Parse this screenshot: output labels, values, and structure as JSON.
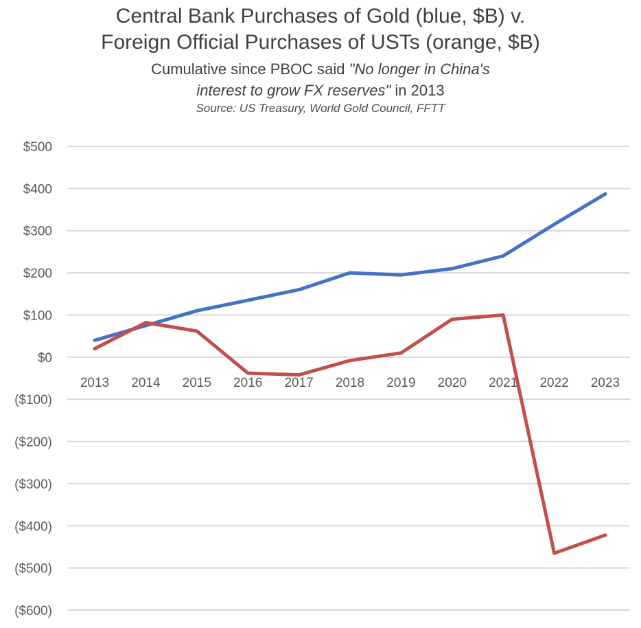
{
  "chart_data": {
    "type": "line",
    "title_line1": "Central Bank Purchases of Gold (blue, $B) v.",
    "title_line2": "Foreign Official Purchases of USTs (orange, $B)",
    "subtitle_prefix": "Cumulative since PBOC said ",
    "subtitle_quote_part1": "\"No longer in China's",
    "subtitle_quote_part2": "interest to grow FX reserves\"",
    "subtitle_suffix": " in 2013",
    "source": "Source: US Treasury, World Gold Council, FFTT",
    "categories": [
      "2013",
      "2014",
      "2015",
      "2016",
      "2017",
      "2018",
      "2019",
      "2020",
      "2021",
      "2022",
      "2023"
    ],
    "series": [
      {
        "name": "Central Bank Purchases of Gold",
        "color": "#4472c4",
        "values": [
          40,
          75,
          110,
          135,
          160,
          200,
          195,
          210,
          240,
          315,
          387
        ]
      },
      {
        "name": "Foreign Official Purchases of USTs",
        "color": "#c0504d",
        "values": [
          20,
          82,
          62,
          -38,
          -42,
          -8,
          10,
          90,
          100,
          -465,
          -422
        ]
      }
    ],
    "yticks": [
      500,
      400,
      300,
      200,
      100,
      0,
      -100,
      -200,
      -300,
      -400,
      -500,
      -600
    ],
    "ytick_labels": [
      "$500",
      "$400",
      "$300",
      "$200",
      "$100",
      "$0",
      "($100)",
      "($200)",
      "($300)",
      "($400)",
      "($500)",
      "($600)"
    ],
    "ylim": [
      -600,
      500
    ],
    "grid": true,
    "xlabel": "",
    "ylabel": ""
  }
}
